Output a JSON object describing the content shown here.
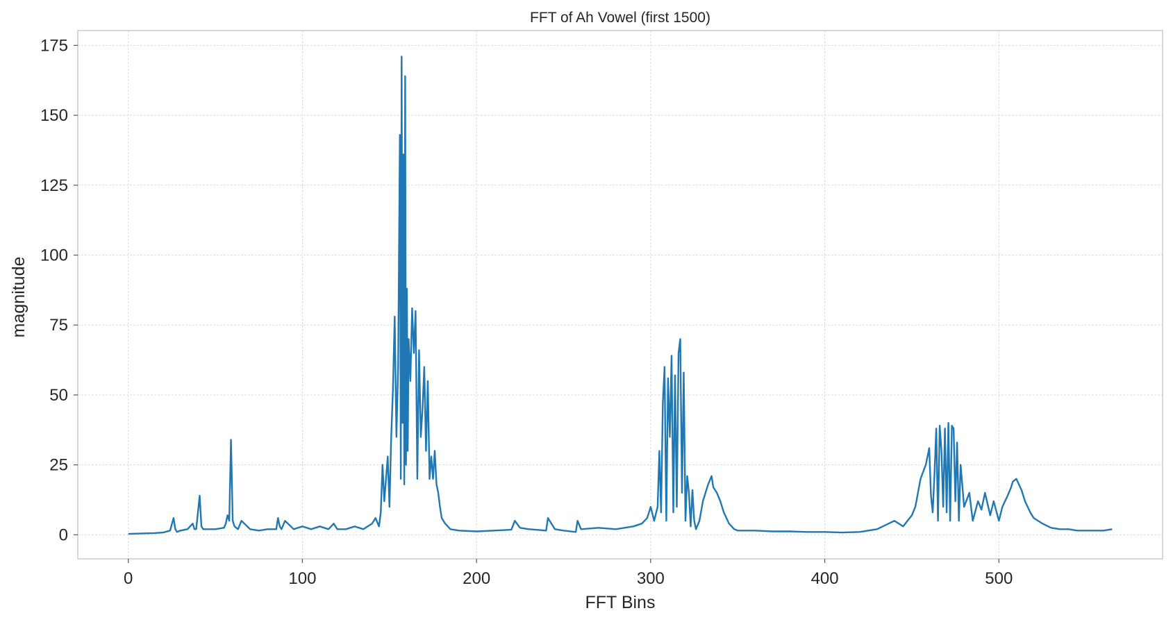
{
  "chart_data": {
    "type": "line",
    "title": "FFT of Ah Vowel (first 1500)",
    "xlabel": "FFT Bins",
    "ylabel": "magnitude",
    "xlim": [
      -29,
      594
    ],
    "ylim": [
      -8.6,
      180.3
    ],
    "xticks": [
      0,
      100,
      200,
      300,
      400,
      500
    ],
    "yticks": [
      0,
      25,
      50,
      75,
      100,
      125,
      150,
      175
    ],
    "grid": true,
    "legend": "none",
    "series": [
      {
        "color": "#1f77b4",
        "x": [
          0,
          5,
          10,
          15,
          20,
          24,
          26,
          27,
          28,
          30,
          34,
          37,
          38,
          39,
          41,
          42,
          43,
          45,
          50,
          55,
          56,
          57,
          58,
          59,
          60,
          61,
          63,
          65,
          70,
          75,
          80,
          85,
          86,
          87,
          88,
          90,
          95,
          100,
          105,
          110,
          115,
          118,
          120,
          125,
          130,
          135,
          140,
          142,
          144,
          145,
          146,
          147,
          148,
          149,
          150,
          151,
          152,
          153,
          154,
          155,
          156,
          156.5,
          157,
          157.5,
          158,
          158.5,
          159,
          159.5,
          160,
          160.5,
          161,
          162,
          163,
          164,
          165,
          166,
          167,
          168,
          169,
          170,
          171,
          172,
          173,
          174,
          175,
          176,
          177,
          178,
          179,
          180,
          182,
          185,
          190,
          200,
          210,
          220,
          222,
          225,
          230,
          240,
          241,
          245,
          250,
          257,
          258,
          260,
          270,
          280,
          290,
          295,
          298,
          300,
          302,
          304,
          305,
          306,
          307,
          308,
          309,
          310,
          311,
          312,
          313,
          314,
          315,
          316,
          317,
          318,
          319,
          320,
          321,
          322,
          323,
          324,
          325,
          326,
          328,
          330,
          333,
          335,
          336,
          338,
          340,
          342,
          345,
          348,
          350,
          355,
          360,
          370,
          380,
          390,
          400,
          410,
          420,
          430,
          440,
          445,
          450,
          452,
          455,
          458,
          460,
          461,
          462,
          463,
          464,
          465,
          466,
          467,
          468,
          469,
          470,
          471,
          472,
          473,
          474,
          475,
          476,
          477,
          478,
          480,
          483,
          485,
          488,
          490,
          492,
          495,
          497,
          500,
          502,
          505,
          507,
          508,
          510,
          513,
          515,
          518,
          520,
          525,
          530,
          535,
          540,
          545,
          550,
          555,
          560,
          565
        ],
        "y": [
          0.3,
          0.4,
          0.5,
          0.6,
          0.8,
          1.5,
          6,
          2,
          1,
          1.5,
          2,
          4,
          2,
          2,
          14,
          3,
          2,
          2,
          2,
          2.5,
          4,
          7,
          5,
          34,
          5,
          3,
          2,
          5,
          2,
          1.5,
          2,
          2,
          6,
          3,
          2,
          5,
          2,
          3,
          2,
          3,
          2,
          4,
          2,
          2,
          3,
          2,
          4,
          6,
          3,
          8,
          25,
          12,
          20,
          28,
          10,
          35,
          52,
          78,
          35,
          60,
          143,
          20,
          171,
          40,
          136,
          18,
          164,
          25,
          88,
          30,
          70,
          55,
          81,
          65,
          80,
          20,
          66,
          35,
          45,
          60,
          30,
          55,
          20,
          28,
          20,
          30,
          18,
          15,
          10,
          6,
          4,
          2,
          1.5,
          1.2,
          1.5,
          1.8,
          5,
          2.5,
          2,
          1.5,
          6,
          2,
          1.5,
          1,
          5,
          2,
          2.5,
          2,
          3,
          4,
          6,
          10,
          5,
          10,
          30,
          8,
          47,
          60,
          5,
          56,
          35,
          64,
          8,
          57,
          10,
          65,
          70,
          15,
          58,
          5,
          21,
          15,
          3,
          16,
          5,
          2,
          5,
          12,
          18,
          21,
          17,
          15,
          12,
          8,
          4,
          2,
          1.5,
          1.5,
          1.5,
          1.2,
          1.2,
          1,
          1,
          0.8,
          1,
          2,
          5,
          3,
          7,
          10,
          20,
          25,
          31,
          14,
          8,
          22,
          38,
          5,
          39,
          30,
          10,
          38,
          8,
          40,
          5,
          39,
          38,
          12,
          33,
          5,
          25,
          10,
          15,
          5,
          12,
          9,
          15,
          7,
          12,
          5,
          10,
          14,
          17,
          19,
          20,
          16,
          12,
          8,
          6,
          4,
          2.5,
          2,
          2,
          1.5,
          1.5,
          1.5,
          1.5,
          2
        ]
      }
    ]
  }
}
